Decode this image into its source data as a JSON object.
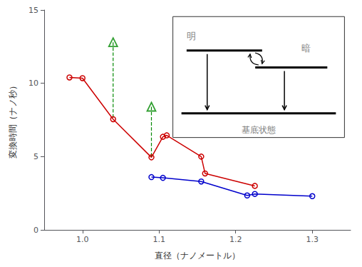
{
  "chart_data": {
    "type": "line",
    "xlabel": "直径（ナノメートル）",
    "ylabel": "変換時間（ナノ秒）",
    "xlim": [
      0.95,
      1.35
    ],
    "ylim": [
      0,
      15
    ],
    "xticks": [
      {
        "value": 1.0,
        "label": "1.0"
      },
      1.1,
      1.2,
      1.3
    ],
    "yticks": [
      0,
      5,
      10,
      15
    ],
    "grid": false,
    "series": [
      {
        "type": "line",
        "color": "#cc0000",
        "marker": "circle",
        "line_style": "solid",
        "x": [
          0.983,
          1.0,
          1.04,
          1.09,
          1.105,
          1.11,
          1.155,
          1.16,
          1.225
        ],
        "values": [
          10.4,
          10.35,
          7.55,
          4.95,
          6.35,
          6.45,
          5.0,
          3.85,
          3.0
        ]
      },
      {
        "type": "line",
        "color": "#0000cc",
        "marker": "circle",
        "line_style": "solid",
        "x": [
          1.09,
          1.105,
          1.155,
          1.215,
          1.225,
          1.3
        ],
        "values": [
          3.6,
          3.55,
          3.3,
          2.35,
          2.45,
          2.3
        ]
      },
      {
        "type": "scatter",
        "color": "#008800",
        "marker": "triangle",
        "x": [
          1.04,
          1.09
        ],
        "values": [
          12.8,
          8.4
        ]
      },
      {
        "type": "line",
        "color": "#008800",
        "line_style": "dashed",
        "x": [
          1.04,
          1.04
        ],
        "values": [
          12.8,
          7.55
        ]
      },
      {
        "type": "line",
        "color": "#008800",
        "line_style": "dashed",
        "x": [
          1.09,
          1.09
        ],
        "values": [
          8.4,
          4.95
        ]
      }
    ],
    "annotations": [
      "明",
      "暗",
      "基底状態"
    ]
  }
}
